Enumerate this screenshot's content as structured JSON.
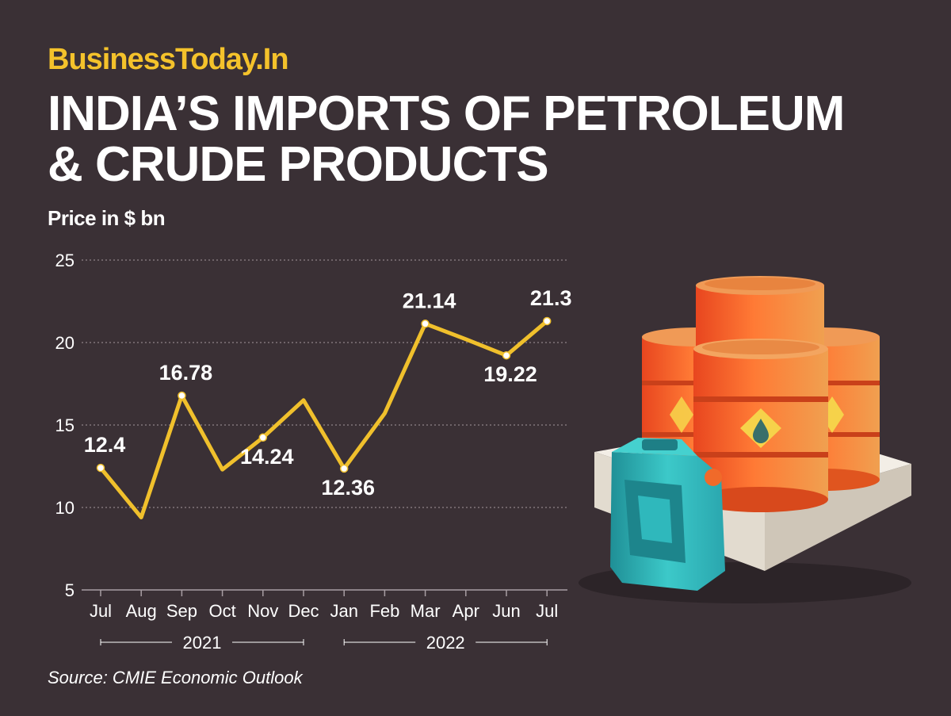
{
  "brand": "BusinessToday.In",
  "title_lines": [
    "INDIA’S IMPORTS OF PETROLEUM",
    "& CRUDE PRODUCTS"
  ],
  "unit_label": "Price in $ bn",
  "source": "Source: CMIE Economic Outlook",
  "colors": {
    "background": "#3a3035",
    "line": "#f0c02c",
    "brand": "#f4c22b",
    "text": "#ffffff",
    "barrel": "#f26a2a",
    "jerrycan": "#2bb3b8"
  },
  "illustration": {
    "icons": [
      "oil-barrel-icon",
      "oil-barrel-icon",
      "oil-barrel-icon",
      "oil-barrel-icon",
      "oil-drop-icon",
      "jerrycan-icon",
      "pallet-icon"
    ]
  },
  "chart_data": {
    "type": "line",
    "categories": [
      "Jul",
      "Aug",
      "Sep",
      "Oct",
      "Nov",
      "Dec",
      "Jan",
      "Feb",
      "Mar",
      "Apr",
      "Jun",
      "Jul"
    ],
    "series": [
      {
        "values": [
          12.4,
          9.4,
          16.78,
          12.3,
          14.24,
          16.5,
          12.36,
          15.7,
          21.14,
          20.2,
          19.22,
          21.3
        ]
      }
    ],
    "labeled_points": [
      {
        "index": 0,
        "label": "12.4",
        "position": "above"
      },
      {
        "index": 2,
        "label": "16.78",
        "position": "above"
      },
      {
        "index": 4,
        "label": "14.24",
        "position": "below"
      },
      {
        "index": 6,
        "label": "12.36",
        "position": "below"
      },
      {
        "index": 8,
        "label": "21.14",
        "position": "above"
      },
      {
        "index": 10,
        "label": "19.22",
        "position": "below"
      },
      {
        "index": 11,
        "label": "21.3",
        "position": "above"
      }
    ],
    "marker_indices": [
      0,
      2,
      4,
      6,
      8,
      10,
      11
    ],
    "year_groups": [
      {
        "label": "2021",
        "start": 0,
        "end": 5
      },
      {
        "label": "2022",
        "start": 6,
        "end": 11
      }
    ],
    "ylim": [
      5,
      25
    ],
    "yticks": [
      5,
      10,
      15,
      20,
      25
    ],
    "grid": true,
    "xlabel": "",
    "ylabel": "Price in $ bn"
  }
}
